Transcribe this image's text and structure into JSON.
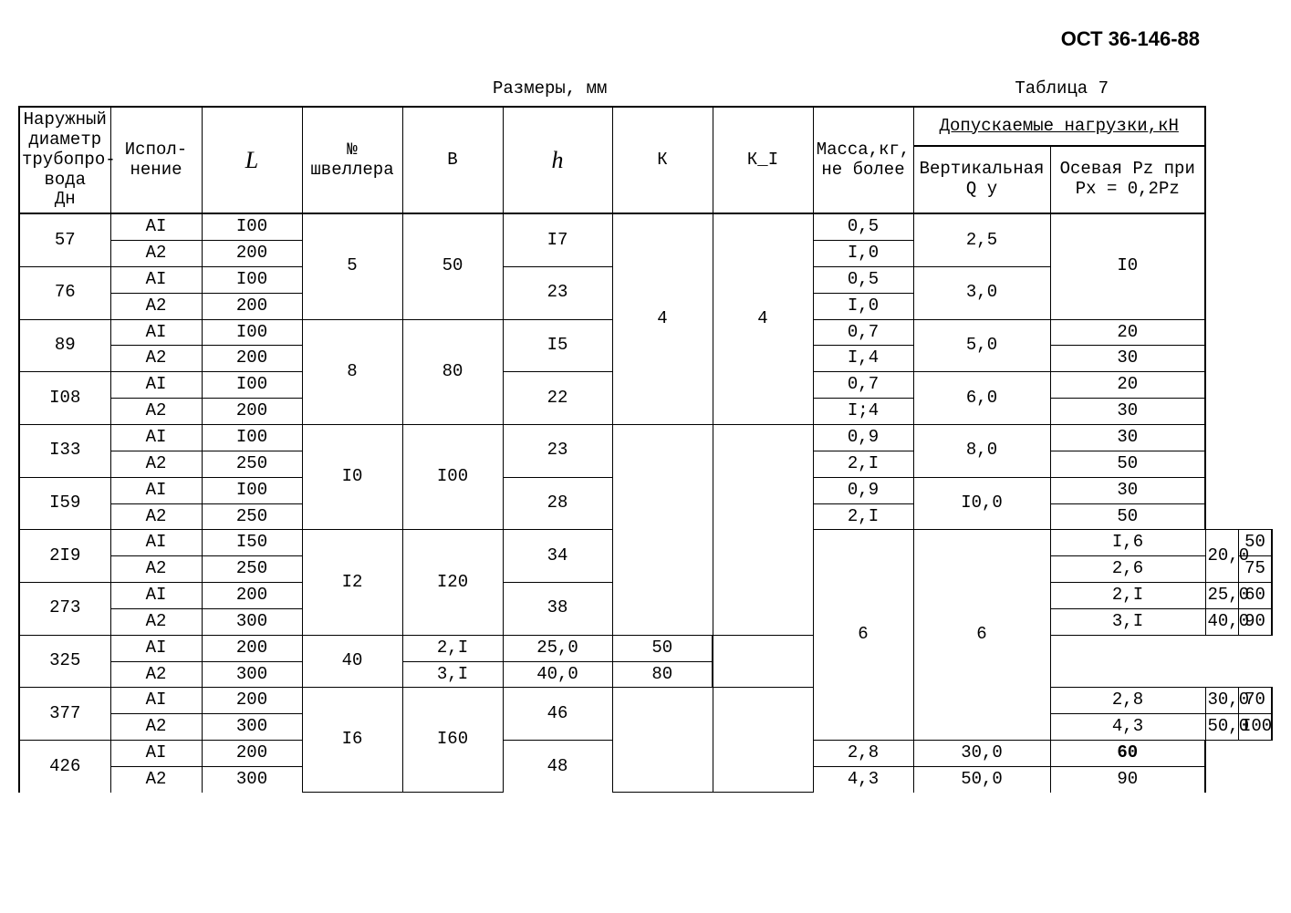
{
  "header": {
    "code": "ОСТ 36-146-88"
  },
  "caption": {
    "center": "Размеры, мм",
    "right": "Таблица 7"
  },
  "columns": {
    "c0": "Наружный диаметр трубопро-\nвода\n Дн",
    "c1": "Испол-\nнение",
    "c2": "L",
    "c3": "№\nшвеллера",
    "c4": "В",
    "c5": "h",
    "c6": "К",
    "c7": "К_I",
    "c8": "Масса,кг,\nне более",
    "c9_top": "Допускаемые нагрузки,кН",
    "c9a": "Вертикальная\nQ у",
    "c9b": "Осевая Pz при\nPx = 0,2Pz"
  },
  "widths": {
    "c0": 100,
    "c1": 100,
    "c2": 110,
    "c3": 110,
    "c4": 110,
    "c5": 120,
    "c6": 110,
    "c7": 110,
    "c8": 110,
    "c9a": 150,
    "c9b": 170
  },
  "rows": [
    {
      "dn": "57",
      "isp": [
        "АI",
        "А2"
      ],
      "L": [
        "I00",
        "200"
      ],
      "shv": "5",
      "B": "50",
      "h": "I7",
      "K": "4",
      "KI": "4",
      "mass": [
        "0,5",
        "I,0"
      ],
      "Qy": "2,5",
      "Pz": "I0",
      "pz_span": 4
    },
    {
      "dn": "76",
      "isp": [
        "АI",
        "А2"
      ],
      "L": [
        "I00",
        "200"
      ],
      "h": "23",
      "mass": [
        "0,5",
        "I,0"
      ],
      "Qy": "3,0"
    },
    {
      "dn": "89",
      "isp": [
        "АI",
        "А2"
      ],
      "L": [
        "I00",
        "200"
      ],
      "shv": "8",
      "B": "80",
      "h": "I5",
      "mass": [
        "0,7",
        "I,4"
      ],
      "Qy": "5,0",
      "Pz": [
        "20",
        "30"
      ]
    },
    {
      "dn": "I08",
      "isp": [
        "АI",
        "А2"
      ],
      "L": [
        "I00",
        "200"
      ],
      "h": "22",
      "mass": [
        "0,7",
        "I;4"
      ],
      "Qy": "6,0",
      "Pz": [
        "20",
        "30"
      ]
    },
    {
      "dn": "I33",
      "isp": [
        "АI",
        "А2"
      ],
      "L": [
        "I00",
        "250"
      ],
      "shv": "I0",
      "B": "I00",
      "h": "23",
      "K": "",
      "KI": "",
      "mass": [
        "0,9",
        "2,I"
      ],
      "Qy": "8,0",
      "Pz": [
        "30",
        "50"
      ]
    },
    {
      "dn": "I59",
      "isp": [
        "АI",
        "А2"
      ],
      "L": [
        "I00",
        "250"
      ],
      "h": "28",
      "mass": [
        "0,9",
        "2,I"
      ],
      "Qy": "I0,0",
      "Pz": [
        "30",
        "50"
      ]
    },
    {
      "dn": "2I9",
      "isp": [
        "АI",
        "А2"
      ],
      "L": [
        "I50",
        "250"
      ],
      "shv": "I2",
      "B": "I20",
      "h": "34",
      "K": "6",
      "KI": "6",
      "mass": [
        "I,6",
        "2,6"
      ],
      "Qy": "20,0",
      "Pz": [
        "50",
        "75"
      ]
    },
    {
      "dn": "273",
      "isp": [
        "АI",
        "А2"
      ],
      "L": [
        "200",
        "300"
      ],
      "h": "38",
      "mass": [
        "2,I",
        "3,I"
      ],
      "Qy": [
        "25,0",
        "40,0"
      ],
      "Pz": [
        "60",
        "90"
      ]
    },
    {
      "dn": "325",
      "isp": [
        "АI",
        "А2"
      ],
      "L": [
        "200",
        "300"
      ],
      "h": "40",
      "mass": [
        "2,I",
        "3,I"
      ],
      "Qy": [
        "25,0",
        "40,0"
      ],
      "Pz": [
        "50",
        "80"
      ]
    },
    {
      "dn": "377",
      "isp": [
        "АI",
        "А2"
      ],
      "L": [
        "200",
        "300"
      ],
      "shv": "I6",
      "B": "I60",
      "h": "46",
      "K": "",
      "KI": "",
      "mass": [
        "2,8",
        "4,3"
      ],
      "Qy": [
        "30,0",
        "50,0"
      ],
      "Pz": [
        "70",
        "I00"
      ]
    },
    {
      "dn": "426",
      "isp": [
        "АI",
        "А2"
      ],
      "L": [
        "200",
        "300"
      ],
      "h": "48",
      "mass": [
        "2,8",
        "4,3"
      ],
      "Qy": [
        "30,0",
        "50,0"
      ],
      "Pz": [
        "60",
        "90"
      ],
      "pz_bold": [
        true,
        false
      ]
    }
  ],
  "merges": {
    "shv_B_span": 4,
    "K_KI_span": 8
  }
}
